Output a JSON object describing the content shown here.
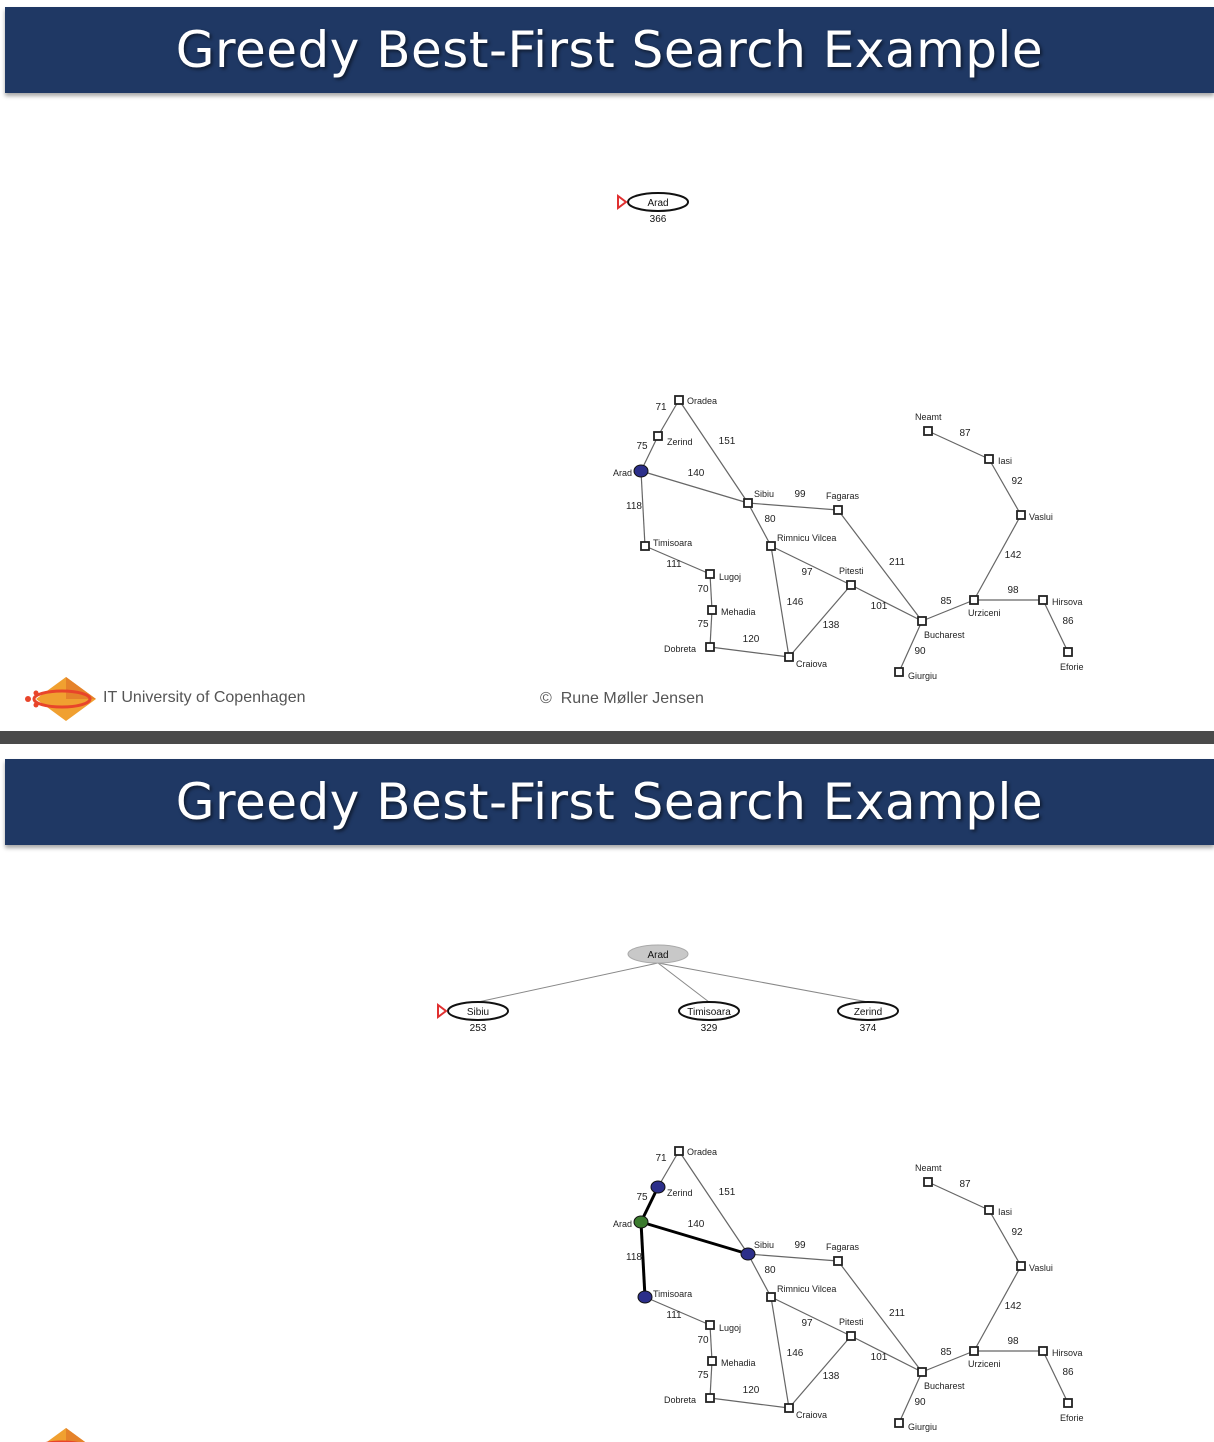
{
  "slides": [
    {
      "title": "Greedy Best-First Search Example",
      "tree": {
        "nodes": [
          {
            "id": "t0",
            "label": "Arad",
            "h": "366",
            "state": "frontier",
            "next": true
          }
        ],
        "edges": []
      },
      "map_highlight": {
        "blue": [
          "Arad"
        ],
        "green": [],
        "bold_edges": []
      }
    },
    {
      "title": "Greedy Best-First Search Example",
      "tree": {
        "nodes": [
          {
            "id": "t0",
            "label": "Arad",
            "h": "",
            "state": "expanded",
            "next": false
          },
          {
            "id": "t1",
            "label": "Sibiu",
            "h": "253",
            "state": "frontier",
            "next": true
          },
          {
            "id": "t2",
            "label": "Timisoara",
            "h": "329",
            "state": "frontier",
            "next": false
          },
          {
            "id": "t3",
            "label": "Zerind",
            "h": "374",
            "state": "frontier",
            "next": false
          }
        ],
        "edges": [
          [
            "t0",
            "t1"
          ],
          [
            "t0",
            "t2"
          ],
          [
            "t0",
            "t3"
          ]
        ]
      },
      "map_highlight": {
        "blue": [
          "Sibiu",
          "Timisoara",
          "Zerind"
        ],
        "green": [
          "Arad"
        ],
        "bold_edges": [
          [
            "Arad",
            "Sibiu"
          ],
          [
            "Arad",
            "Timisoara"
          ],
          [
            "Arad",
            "Zerind"
          ]
        ]
      }
    }
  ],
  "footer": {
    "institution": "IT University of Copenhagen",
    "copyright_symbol": "©",
    "copyright": "Rune Møller Jensen"
  },
  "romania_map": {
    "cities": [
      "Oradea",
      "Zerind",
      "Arad",
      "Timisoara",
      "Lugoj",
      "Mehadia",
      "Dobreta",
      "Sibiu",
      "Rimnicu Vilcea",
      "Craiova",
      "Fagaras",
      "Pitesti",
      "Bucharest",
      "Giurgiu",
      "Urziceni",
      "Hirsova",
      "Eforie",
      "Vaslui",
      "Iasi",
      "Neamt"
    ],
    "roads": [
      {
        "a": "Oradea",
        "b": "Zerind",
        "d": "71"
      },
      {
        "a": "Zerind",
        "b": "Arad",
        "d": "75"
      },
      {
        "a": "Oradea",
        "b": "Sibiu",
        "d": "151"
      },
      {
        "a": "Arad",
        "b": "Sibiu",
        "d": "140"
      },
      {
        "a": "Arad",
        "b": "Timisoara",
        "d": "118"
      },
      {
        "a": "Timisoara",
        "b": "Lugoj",
        "d": "111"
      },
      {
        "a": "Lugoj",
        "b": "Mehadia",
        "d": "70"
      },
      {
        "a": "Mehadia",
        "b": "Dobreta",
        "d": "75"
      },
      {
        "a": "Dobreta",
        "b": "Craiova",
        "d": "120"
      },
      {
        "a": "Sibiu",
        "b": "Fagaras",
        "d": "99"
      },
      {
        "a": "Sibiu",
        "b": "Rimnicu Vilcea",
        "d": "80"
      },
      {
        "a": "Rimnicu Vilcea",
        "b": "Pitesti",
        "d": "97"
      },
      {
        "a": "Rimnicu Vilcea",
        "b": "Craiova",
        "d": "146"
      },
      {
        "a": "Craiova",
        "b": "Pitesti",
        "d": "138"
      },
      {
        "a": "Fagaras",
        "b": "Bucharest",
        "d": "211"
      },
      {
        "a": "Pitesti",
        "b": "Bucharest",
        "d": "101"
      },
      {
        "a": "Bucharest",
        "b": "Giurgiu",
        "d": "90"
      },
      {
        "a": "Bucharest",
        "b": "Urziceni",
        "d": "85"
      },
      {
        "a": "Urziceni",
        "b": "Hirsova",
        "d": "98"
      },
      {
        "a": "Hirsova",
        "b": "Eforie",
        "d": "86"
      },
      {
        "a": "Urziceni",
        "b": "Vaslui",
        "d": "142"
      },
      {
        "a": "Vaslui",
        "b": "Iasi",
        "d": "92"
      },
      {
        "a": "Iasi",
        "b": "Neamt",
        "d": "87"
      }
    ]
  }
}
